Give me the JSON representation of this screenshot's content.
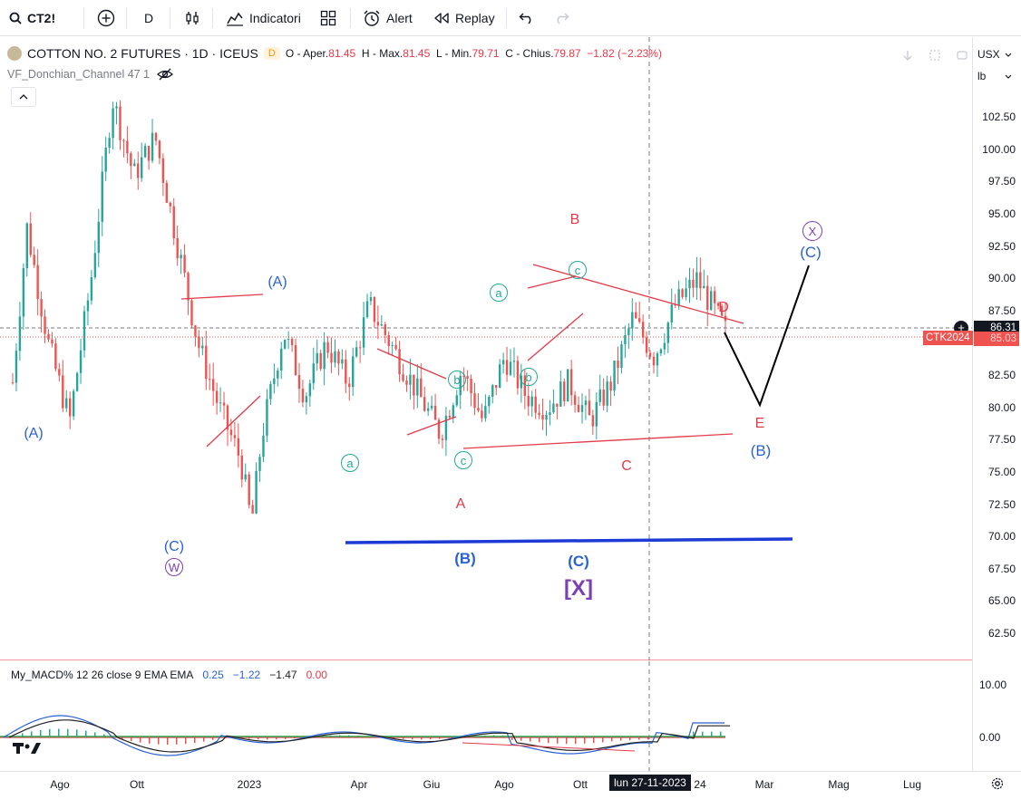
{
  "toolbar": {
    "symbol": "CT2!",
    "interval": "D",
    "indicators_label": "Indicatori",
    "alert_label": "Alert",
    "replay_label": "Replay"
  },
  "legend": {
    "title": "COTTON NO. 2 FUTURES · 1D · ICEUS",
    "badge": "D",
    "open_label": "O - Aper.",
    "open": "81.45",
    "high_label": "H - Max.",
    "high": "81.45",
    "low_label": "L - Min.",
    "low": "79.71",
    "close_label": "C - Chius.",
    "close": "79.87",
    "change": "−1.82 (−2.23%)",
    "indicator": "VF_Donchian_Channel 47 1"
  },
  "macd": {
    "label": "My_MACD% 12 26 close 9 EMA EMA",
    "v1": "0.25",
    "v2": "−1.22",
    "v3": "−1.47",
    "v4": "0.00",
    "axis": [
      "10.00",
      "0.00"
    ]
  },
  "price_axis": {
    "currency": "USX",
    "unit": "lb",
    "labels": [
      "102.50",
      "100.00",
      "97.50",
      "95.00",
      "92.50",
      "90.00",
      "87.50",
      "85.00",
      "82.50",
      "80.00",
      "77.50",
      "75.00",
      "72.50",
      "70.00",
      "67.50",
      "65.00",
      "62.50"
    ],
    "last_price": "86.31",
    "tag_label": "CTK2024",
    "tag_value": "85.03"
  },
  "time_axis": {
    "labels": [
      "Ago",
      "Ott",
      "2023",
      "Apr",
      "Giu",
      "Ago",
      "Ott",
      "24",
      "Mar",
      "Mag",
      "Lug"
    ],
    "crosshair": "lun 27-11-2023"
  },
  "annotations": {
    "blue": [
      "(A)",
      "(C)",
      "(A)",
      "(B)",
      "(C)",
      "(B)",
      "(C)"
    ],
    "purple_circles": [
      "W",
      "X"
    ],
    "bracket_x": "[X]",
    "red": [
      "A",
      "B",
      "C",
      "D",
      "E"
    ],
    "green_circles": [
      "a",
      "b",
      "c",
      "a",
      "b",
      "c"
    ]
  },
  "colors": {
    "up": "#26a69a",
    "down": "#ef5350",
    "wave_blue": "#2a62d4",
    "wave_red": "#e23b4a",
    "wave_purple": "#7b3fb5",
    "wave_green": "#22ab94",
    "support_line": "#1e3ad6"
  },
  "chart_data": {
    "type": "candlestick",
    "symbol": "COTTON NO. 2 FUTURES",
    "interval": "1D",
    "ylim": [
      60.5,
      105
    ],
    "close_path": [
      [
        0,
        82
      ],
      [
        0.02,
        94
      ],
      [
        0.05,
        85
      ],
      [
        0.08,
        79
      ],
      [
        0.11,
        90
      ],
      [
        0.14,
        104
      ],
      [
        0.17,
        98
      ],
      [
        0.2,
        101
      ],
      [
        0.23,
        93
      ],
      [
        0.26,
        85
      ],
      [
        0.29,
        80
      ],
      [
        0.32,
        76
      ],
      [
        0.335,
        71
      ],
      [
        0.35,
        78
      ],
      [
        0.38,
        86
      ],
      [
        0.41,
        81
      ],
      [
        0.44,
        85
      ],
      [
        0.47,
        82
      ],
      [
        0.5,
        88
      ],
      [
        0.53,
        85
      ],
      [
        0.56,
        82
      ],
      [
        0.6,
        78
      ],
      [
        0.63,
        83
      ],
      [
        0.66,
        79
      ],
      [
        0.69,
        84
      ],
      [
        0.72,
        81
      ],
      [
        0.75,
        80
      ],
      [
        0.78,
        82
      ],
      [
        0.81,
        79
      ],
      [
        0.84,
        82
      ],
      [
        0.87,
        87
      ],
      [
        0.9,
        84
      ],
      [
        0.93,
        88
      ],
      [
        0.96,
        90
      ],
      [
        1.0,
        86
      ]
    ],
    "last_close": 86.31
  }
}
